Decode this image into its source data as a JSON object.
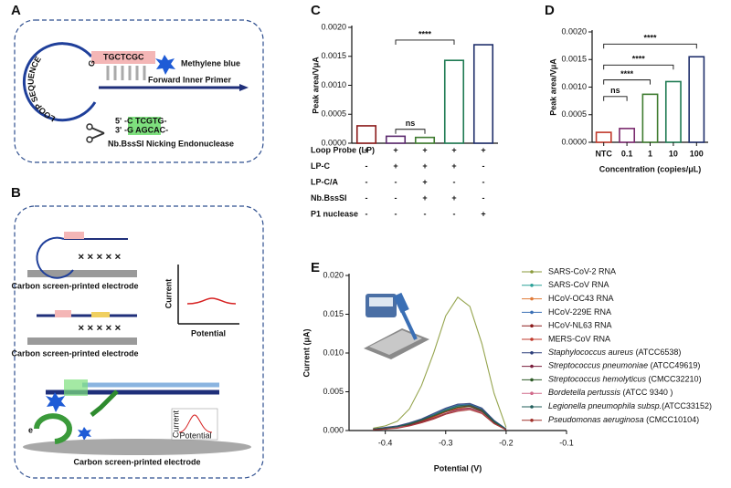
{
  "diagram_a": {
    "label": "A",
    "loop": "LOOP SEQUENCE",
    "stem": "TGCTCGC",
    "stem_g": "G",
    "reporter": "Methylene blue",
    "primer": "Forward Inner Primer",
    "site_top_end": "5'",
    "site_top": "-C TCGTG-",
    "site_bottom_end": "3'",
    "site_bottom": "-G AGCAC-",
    "enzyme": "Nb.BssSI Nicking Endonuclease"
  },
  "diagram_b": {
    "label": "B",
    "electrode_1": "Carbon screen-printed electrode",
    "electrode_2": "Carbon screen-printed electrode",
    "electrode_3": "Carbon screen-printed electrode",
    "axis_y": "Current",
    "axis_x": "Potential",
    "small_axis_y": "Current",
    "small_axis_x": "Potential",
    "electron": "e"
  },
  "chart_data": [
    {
      "type": "bar",
      "panel_label": "C",
      "ylabel": "Peak area/VμA",
      "categories": [
        null,
        null,
        null,
        null,
        null
      ],
      "values": [
        0.0003,
        0.00012,
        0.0001,
        0.00143,
        0.0017
      ],
      "colors": [
        "#8b1a1a",
        "#5b2a6e",
        "#3e7b2f",
        "#1e7a52",
        "#1f2f6b"
      ],
      "ylim": [
        0,
        0.002
      ],
      "yticks": [
        {
          "value": 0,
          "label": "0.0000"
        },
        {
          "value": 0.0005,
          "label": "0.0005"
        },
        {
          "value": 0.001,
          "label": "0.0010"
        },
        {
          "value": 0.0015,
          "label": "0.0015"
        },
        {
          "value": 0.002,
          "label": "0.0020"
        }
      ],
      "annotations": [
        {
          "text": "****",
          "between": [
            1,
            3
          ],
          "y": 0.00178
        },
        {
          "text": "ns",
          "between": [
            1,
            2
          ],
          "y": 0.00024
        }
      ],
      "table": {
        "highlight_column": 3,
        "highlight_color": "#e8261f",
        "rows": [
          {
            "label": "Loop Probe (LP)",
            "cells": [
              "+",
              "+",
              "+",
              "+",
              "+"
            ]
          },
          {
            "label": "LP-C",
            "cells": [
              "-",
              "+",
              "+",
              "+",
              "-"
            ]
          },
          {
            "label": "LP-C/A",
            "cells": [
              "-",
              "-",
              "+",
              "-",
              "-"
            ]
          },
          {
            "label": "Nb.BssSI",
            "cells": [
              "-",
              "-",
              "+",
              "+",
              "-"
            ]
          },
          {
            "label": "P1 nuclease",
            "cells": [
              "-",
              "-",
              "-",
              "-",
              "+"
            ]
          }
        ]
      }
    },
    {
      "type": "bar",
      "panel_label": "D",
      "ylabel": "Peak area/VμA",
      "xlabel": "Concentration (copies/μL)",
      "categories": [
        "NTC",
        "0.1",
        "1",
        "10",
        "100"
      ],
      "values": [
        0.00018,
        0.00025,
        0.00087,
        0.0011,
        0.00155
      ],
      "colors": [
        "#c0392b",
        "#7a2a6e",
        "#3e7b2f",
        "#1e7a52",
        "#1f2f6b"
      ],
      "ylim": [
        0,
        0.002
      ],
      "yticks": [
        {
          "value": 0,
          "label": "0.0000"
        },
        {
          "value": 0.0005,
          "label": "0.0005"
        },
        {
          "value": 0.001,
          "label": "0.0010"
        },
        {
          "value": 0.0015,
          "label": "0.0015"
        },
        {
          "value": 0.002,
          "label": "0.0020"
        }
      ],
      "annotations": [
        {
          "text": "ns",
          "between": [
            0,
            1
          ],
          "y": 0.00083
        },
        {
          "text": "****",
          "between": [
            0,
            2
          ],
          "y": 0.00113
        },
        {
          "text": "****",
          "between": [
            0,
            3
          ],
          "y": 0.0014
        },
        {
          "text": "****",
          "between": [
            0,
            4
          ],
          "y": 0.00178
        }
      ]
    },
    {
      "type": "line",
      "panel_label": "E",
      "xlabel": "Potential (V)",
      "ylabel": "Current (μA)",
      "x": [
        -0.42,
        -0.4,
        -0.38,
        -0.36,
        -0.34,
        -0.32,
        -0.3,
        -0.28,
        -0.26,
        -0.24,
        -0.22,
        -0.2
      ],
      "xlim": [
        -0.46,
        -0.1
      ],
      "xticks": [
        -0.4,
        -0.3,
        -0.2,
        -0.1
      ],
      "ylim": [
        0,
        0.02
      ],
      "yticks": [
        {
          "value": 0,
          "label": "0.000"
        },
        {
          "value": 0.005,
          "label": "0.005"
        },
        {
          "value": 0.01,
          "label": "0.010"
        },
        {
          "value": 0.015,
          "label": "0.015"
        },
        {
          "value": 0.02,
          "label": "0.020"
        }
      ],
      "series": [
        {
          "name": "SARS-CoV-2 RNA",
          "color": "#8a9a3a",
          "italic": false,
          "values": [
            0.0003,
            0.0006,
            0.0012,
            0.0028,
            0.0058,
            0.01,
            0.0148,
            0.0172,
            0.016,
            0.0112,
            0.0048,
            0.0004
          ]
        },
        {
          "name": "SARS-CoV RNA",
          "color": "#2aa198",
          "italic": false,
          "values": [
            0.0002,
            0.0003,
            0.0005,
            0.0008,
            0.0013,
            0.0019,
            0.0026,
            0.0031,
            0.0033,
            0.0027,
            0.0012,
            0.0001
          ]
        },
        {
          "name": "HCoV-OC43 RNA",
          "color": "#e07b39",
          "italic": false,
          "values": [
            0.0002,
            0.0003,
            0.0004,
            0.0007,
            0.0011,
            0.0017,
            0.0024,
            0.0029,
            0.0031,
            0.0026,
            0.0011,
            0.0001
          ]
        },
        {
          "name": "HCoV-229E RNA",
          "color": "#3a6fb5",
          "italic": false,
          "values": [
            0.0002,
            0.0003,
            0.0005,
            0.0009,
            0.0014,
            0.0021,
            0.0028,
            0.0033,
            0.0034,
            0.0028,
            0.0013,
            0.0002
          ]
        },
        {
          "name": "HCoV-NL63 RNA",
          "color": "#8b1a1a",
          "italic": false,
          "values": [
            0.0001,
            0.0002,
            0.0004,
            0.0007,
            0.0012,
            0.0018,
            0.0025,
            0.003,
            0.0032,
            0.0026,
            0.001,
            0.0001
          ]
        },
        {
          "name": "MERS-CoV RNA",
          "color": "#c0392b",
          "italic": false,
          "values": [
            0.0002,
            0.0003,
            0.0005,
            0.0008,
            0.0012,
            0.0018,
            0.0024,
            0.0028,
            0.0029,
            0.0024,
            0.001,
            0.0001
          ]
        },
        {
          "name": "Staphylococcus aureus (ATCC6538)",
          "color": "#2c3e7a",
          "italic": true,
          "values": [
            0.0002,
            0.0004,
            0.0006,
            0.001,
            0.0015,
            0.0022,
            0.0029,
            0.0034,
            0.0035,
            0.0029,
            0.0013,
            0.0002
          ]
        },
        {
          "name": "Streptococcus pneumoniae (ATCC49619)",
          "color": "#7a1f3d",
          "italic": true,
          "values": [
            0.0001,
            0.0002,
            0.0004,
            0.0007,
            0.0011,
            0.0016,
            0.0022,
            0.0027,
            0.0029,
            0.0024,
            0.001,
            0.0001
          ]
        },
        {
          "name": "Streptococcus hemolyticus (CMCC32210)",
          "color": "#2d5a27",
          "italic": true,
          "values": [
            0.0002,
            0.0003,
            0.0005,
            0.0008,
            0.0013,
            0.0019,
            0.0025,
            0.003,
            0.0031,
            0.0025,
            0.0011,
            0.0001
          ]
        },
        {
          "name": "Bordetella pertussis (ATCC 9340 )",
          "color": "#d16a8a",
          "italic": true,
          "values": [
            0.0001,
            0.0002,
            0.0004,
            0.0006,
            0.001,
            0.0015,
            0.0021,
            0.0026,
            0.0028,
            0.0023,
            0.0009,
            0.0001
          ]
        },
        {
          "name": "Legionella pneumophila subsp.(ATCC33152)",
          "color": "#1f5d5a",
          "italic": true,
          "values": [
            0.0002,
            0.0003,
            0.0005,
            0.0009,
            0.0014,
            0.002,
            0.0027,
            0.0032,
            0.0033,
            0.0027,
            0.0012,
            0.0002
          ]
        },
        {
          "name": "Pseudomonas aeruginosa (CMCC10104)",
          "color": "#a0302a",
          "italic": true,
          "values": [
            0.0001,
            0.0002,
            0.0003,
            0.0006,
            0.001,
            0.0015,
            0.0021,
            0.0025,
            0.0027,
            0.0022,
            0.0009,
            0.0001
          ]
        }
      ]
    }
  ]
}
